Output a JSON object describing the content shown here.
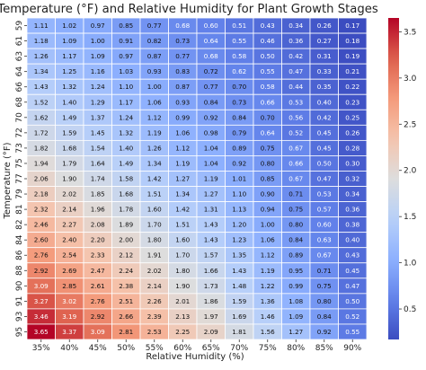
{
  "chart_data": {
    "type": "heatmap",
    "title": "Temperature (°F) and Relative Humidity for Plant Growth Stages",
    "xlabel": "Relative Humidity (%)",
    "ylabel": "Temperature (°F)",
    "x_categories": [
      "35%",
      "40%",
      "45%",
      "50%",
      "55%",
      "60%",
      "65%",
      "70%",
      "75%",
      "80%",
      "85%",
      "90%"
    ],
    "y_categories": [
      "59",
      "61",
      "63",
      "64",
      "66",
      "68",
      "70",
      "72",
      "73",
      "75",
      "77",
      "79",
      "81",
      "82",
      "84",
      "86",
      "88",
      "90",
      "91",
      "93",
      "95"
    ],
    "colorbar": {
      "min": 0.17,
      "max": 3.65,
      "ticks": [
        0.5,
        1.0,
        1.5,
        2.0,
        2.5,
        3.0,
        3.5
      ],
      "tick_labels": [
        "0.5",
        "1.0",
        "1.5",
        "2.0",
        "2.5",
        "3.0",
        "3.5"
      ],
      "colormap": "coolwarm"
    },
    "values": [
      [
        "1.11",
        "1.02",
        "0.97",
        "0.85",
        "0.77",
        "0.68",
        "0.60",
        "0.51",
        "0.43",
        "0.34",
        "0.26",
        "0.17"
      ],
      [
        "1.18",
        "1.09",
        "1.00",
        "0.91",
        "0.82",
        "0.73",
        "0.64",
        "0.55",
        "0.46",
        "0.36",
        "0.27",
        "0.18"
      ],
      [
        "1.26",
        "1.17",
        "1.09",
        "0.97",
        "0.87",
        "0.77",
        "0.68",
        "0.58",
        "0.50",
        "0.42",
        "0.31",
        "0.19"
      ],
      [
        "1.34",
        "1.25",
        "1.16",
        "1.03",
        "0.93",
        "0.83",
        "0.72",
        "0.62",
        "0.55",
        "0.47",
        "0.33",
        "0.21"
      ],
      [
        "1.43",
        "1.32",
        "1.24",
        "1.10",
        "1.00",
        "0.87",
        "0.77",
        "0.70",
        "0.58",
        "0.44",
        "0.35",
        "0.22"
      ],
      [
        "1.52",
        "1.40",
        "1.29",
        "1.17",
        "1.06",
        "0.93",
        "0.84",
        "0.73",
        "0.66",
        "0.53",
        "0.40",
        "0.23"
      ],
      [
        "1.62",
        "1.49",
        "1.37",
        "1.24",
        "1.12",
        "0.99",
        "0.92",
        "0.84",
        "0.70",
        "0.56",
        "0.42",
        "0.25"
      ],
      [
        "1.72",
        "1.59",
        "1.45",
        "1.32",
        "1.19",
        "1.06",
        "0.98",
        "0.79",
        "0.64",
        "0.52",
        "0.45",
        "0.26"
      ],
      [
        "1.82",
        "1.68",
        "1.54",
        "1.40",
        "1.26",
        "1.12",
        "1.04",
        "0.89",
        "0.75",
        "0.67",
        "0.45",
        "0.28"
      ],
      [
        "1.94",
        "1.79",
        "1.64",
        "1.49",
        "1.34",
        "1.19",
        "1.04",
        "0.92",
        "0.80",
        "0.66",
        "0.50",
        "0.30"
      ],
      [
        "2.06",
        "1.90",
        "1.74",
        "1.58",
        "1.42",
        "1.27",
        "1.19",
        "1.01",
        "0.85",
        "0.67",
        "0.47",
        "0.32"
      ],
      [
        "2.18",
        "2.02",
        "1.85",
        "1.68",
        "1.51",
        "1.34",
        "1.27",
        "1.10",
        "0.90",
        "0.71",
        "0.53",
        "0.34"
      ],
      [
        "2.32",
        "2.14",
        "1.96",
        "1.78",
        "1.60",
        "1.42",
        "1.31",
        "1.13",
        "0.94",
        "0.75",
        "0.57",
        "0.36"
      ],
      [
        "2.46",
        "2.27",
        "2.08",
        "1.89",
        "1.70",
        "1.51",
        "1.43",
        "1.20",
        "1.00",
        "0.80",
        "0.60",
        "0.38"
      ],
      [
        "2.60",
        "2.40",
        "2.20",
        "2.00",
        "1.80",
        "1.60",
        "1.43",
        "1.23",
        "1.06",
        "0.84",
        "0.63",
        "0.40"
      ],
      [
        "2.76",
        "2.54",
        "2.33",
        "2.12",
        "1.91",
        "1.70",
        "1.57",
        "1.35",
        "1.12",
        "0.89",
        "0.67",
        "0.43"
      ],
      [
        "2.92",
        "2.69",
        "2.47",
        "2.24",
        "2.02",
        "1.80",
        "1.66",
        "1.43",
        "1.19",
        "0.95",
        "0.71",
        "0.45"
      ],
      [
        "3.09",
        "2.85",
        "2.61",
        "2.38",
        "2.14",
        "1.90",
        "1.73",
        "1.48",
        "1.22",
        "0.99",
        "0.75",
        "0.47"
      ],
      [
        "3.27",
        "3.02",
        "2.76",
        "2.51",
        "2.26",
        "2.01",
        "1.86",
        "1.59",
        "1.36",
        "1.08",
        "0.80",
        "0.50"
      ],
      [
        "3.46",
        "3.19",
        "2.92",
        "2.66",
        "2.39",
        "2.13",
        "1.97",
        "1.69",
        "1.46",
        "1.09",
        "0.84",
        "0.52"
      ],
      [
        "3.65",
        "3.37",
        "3.09",
        "2.81",
        "2.53",
        "2.25",
        "2.09",
        "1.81",
        "1.56",
        "1.27",
        "0.92",
        "0.55"
      ]
    ]
  }
}
